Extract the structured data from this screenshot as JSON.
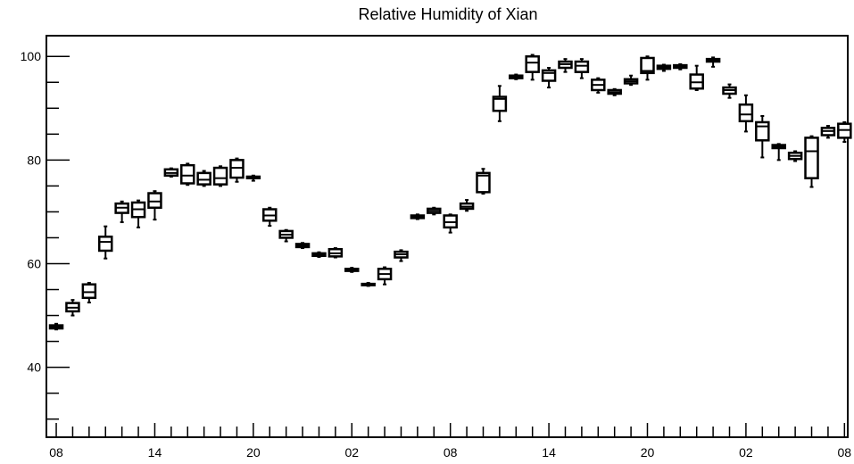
{
  "chart_data": {
    "type": "box",
    "title": "Relative Humidity of Xian",
    "xlabel": "",
    "ylabel": "",
    "ylim": [
      26.5,
      104
    ],
    "y_ticks": [
      40,
      60,
      80,
      100
    ],
    "x_tick_labels": [
      "08",
      "14",
      "20",
      "02",
      "08",
      "14",
      "20",
      "02",
      "08"
    ],
    "x_tick_hours": [
      0,
      6,
      12,
      18,
      24,
      30,
      36,
      42,
      48
    ],
    "xlim": [
      -0.6,
      48.2
    ],
    "grid": false,
    "boxes": [
      {
        "hour": 0,
        "q1": 47.5,
        "median": 47.8,
        "q3": 48.1,
        "min": 47.3,
        "max": 48.4
      },
      {
        "hour": 1,
        "q1": 50.8,
        "median": 51.5,
        "q3": 52.4,
        "min": 50.0,
        "max": 53.0
      },
      {
        "hour": 2,
        "q1": 53.4,
        "median": 54.5,
        "q3": 56.0,
        "min": 52.5,
        "max": 56.3
      },
      {
        "hour": 3,
        "q1": 62.5,
        "median": 64.2,
        "q3": 65.2,
        "min": 61.0,
        "max": 67.2
      },
      {
        "hour": 4,
        "q1": 69.8,
        "median": 70.8,
        "q3": 71.6,
        "min": 68.0,
        "max": 72.0
      },
      {
        "hour": 5,
        "q1": 69.0,
        "median": 70.5,
        "q3": 71.8,
        "min": 67.0,
        "max": 72.2
      },
      {
        "hour": 6,
        "q1": 70.8,
        "median": 72.0,
        "q3": 73.6,
        "min": 68.5,
        "max": 74.0
      },
      {
        "hour": 7,
        "q1": 77.0,
        "median": 77.5,
        "q3": 78.2,
        "min": 76.8,
        "max": 78.4
      },
      {
        "hour": 8,
        "q1": 75.5,
        "median": 77.0,
        "q3": 79.0,
        "min": 75.2,
        "max": 79.3
      },
      {
        "hour": 9,
        "q1": 75.3,
        "median": 76.2,
        "q3": 77.5,
        "min": 75.0,
        "max": 77.9
      },
      {
        "hour": 10,
        "q1": 75.3,
        "median": 76.5,
        "q3": 78.5,
        "min": 75.0,
        "max": 78.8
      },
      {
        "hour": 11,
        "q1": 76.6,
        "median": 78.5,
        "q3": 80.0,
        "min": 75.8,
        "max": 80.3
      },
      {
        "hour": 12,
        "q1": 76.5,
        "median": 76.6,
        "q3": 76.8,
        "min": 76.0,
        "max": 77.0
      },
      {
        "hour": 13,
        "q1": 68.3,
        "median": 69.3,
        "q3": 70.5,
        "min": 67.3,
        "max": 70.8
      },
      {
        "hour": 14,
        "q1": 65.0,
        "median": 65.6,
        "q3": 66.3,
        "min": 64.3,
        "max": 66.5
      },
      {
        "hour": 15,
        "q1": 63.2,
        "median": 63.5,
        "q3": 63.8,
        "min": 63.0,
        "max": 64.0
      },
      {
        "hour": 16,
        "q1": 61.5,
        "median": 61.7,
        "q3": 62.0,
        "min": 61.3,
        "max": 62.2
      },
      {
        "hour": 17,
        "q1": 61.4,
        "median": 62.0,
        "q3": 62.8,
        "min": 61.2,
        "max": 63.0
      },
      {
        "hour": 18,
        "q1": 58.6,
        "median": 58.8,
        "q3": 59.0,
        "min": 58.4,
        "max": 59.2
      },
      {
        "hour": 19,
        "q1": 55.9,
        "median": 56.0,
        "q3": 56.1,
        "min": 55.7,
        "max": 56.3
      },
      {
        "hour": 20,
        "q1": 57.0,
        "median": 58.0,
        "q3": 59.0,
        "min": 56.0,
        "max": 59.3
      },
      {
        "hour": 21,
        "q1": 61.2,
        "median": 61.8,
        "q3": 62.3,
        "min": 60.5,
        "max": 62.6
      },
      {
        "hour": 22,
        "q1": 68.8,
        "median": 69.0,
        "q3": 69.3,
        "min": 68.6,
        "max": 69.5
      },
      {
        "hour": 23,
        "q1": 69.8,
        "median": 70.2,
        "q3": 70.6,
        "min": 69.5,
        "max": 70.8
      },
      {
        "hour": 24,
        "q1": 67.0,
        "median": 68.0,
        "q3": 69.3,
        "min": 66.0,
        "max": 69.5
      },
      {
        "hour": 25,
        "q1": 70.6,
        "median": 71.0,
        "q3": 71.6,
        "min": 70.2,
        "max": 72.3
      },
      {
        "hour": 26,
        "q1": 73.8,
        "median": 77.0,
        "q3": 77.5,
        "min": 73.5,
        "max": 78.3
      },
      {
        "hour": 27,
        "q1": 89.5,
        "median": 91.8,
        "q3": 92.2,
        "min": 87.5,
        "max": 94.3
      },
      {
        "hour": 28,
        "q1": 95.8,
        "median": 96.0,
        "q3": 96.3,
        "min": 95.6,
        "max": 96.5
      },
      {
        "hour": 29,
        "q1": 97.0,
        "median": 98.8,
        "q3": 100.0,
        "min": 95.5,
        "max": 100.3
      },
      {
        "hour": 30,
        "q1": 95.3,
        "median": 96.8,
        "q3": 97.3,
        "min": 94.0,
        "max": 97.8
      },
      {
        "hour": 31,
        "q1": 97.8,
        "median": 98.5,
        "q3": 99.0,
        "min": 97.0,
        "max": 99.5
      },
      {
        "hour": 32,
        "q1": 97.0,
        "median": 98.2,
        "q3": 99.0,
        "min": 95.8,
        "max": 99.5
      },
      {
        "hour": 33,
        "q1": 93.5,
        "median": 94.5,
        "q3": 95.5,
        "min": 93.0,
        "max": 95.8
      },
      {
        "hour": 34,
        "q1": 92.8,
        "median": 93.1,
        "q3": 93.5,
        "min": 92.5,
        "max": 93.7
      },
      {
        "hour": 35,
        "q1": 94.8,
        "median": 95.2,
        "q3": 95.6,
        "min": 94.5,
        "max": 96.3
      },
      {
        "hour": 36,
        "q1": 96.8,
        "median": 97.2,
        "q3": 99.7,
        "min": 95.5,
        "max": 100.0
      },
      {
        "hour": 37,
        "q1": 97.6,
        "median": 97.9,
        "q3": 98.2,
        "min": 97.2,
        "max": 98.4
      },
      {
        "hour": 38,
        "q1": 97.8,
        "median": 98.0,
        "q3": 98.3,
        "min": 97.5,
        "max": 98.5
      },
      {
        "hour": 39,
        "q1": 93.8,
        "median": 95.0,
        "q3": 96.5,
        "min": 93.5,
        "max": 98.2
      },
      {
        "hour": 40,
        "q1": 99.0,
        "median": 99.2,
        "q3": 99.5,
        "min": 98.0,
        "max": 99.8
      },
      {
        "hour": 41,
        "q1": 92.8,
        "median": 93.5,
        "q3": 94.0,
        "min": 92.0,
        "max": 94.6
      },
      {
        "hour": 42,
        "q1": 87.5,
        "median": 88.8,
        "q3": 90.7,
        "min": 85.5,
        "max": 92.5
      },
      {
        "hour": 43,
        "q1": 83.8,
        "median": 86.5,
        "q3": 87.3,
        "min": 80.5,
        "max": 88.5
      },
      {
        "hour": 44,
        "q1": 82.3,
        "median": 82.6,
        "q3": 82.9,
        "min": 80.0,
        "max": 83.1
      },
      {
        "hour": 45,
        "q1": 80.2,
        "median": 80.8,
        "q3": 81.4,
        "min": 79.8,
        "max": 81.7
      },
      {
        "hour": 46,
        "q1": 76.5,
        "median": 81.7,
        "q3": 84.3,
        "min": 74.8,
        "max": 84.6
      },
      {
        "hour": 47,
        "q1": 84.8,
        "median": 85.6,
        "q3": 86.2,
        "min": 84.3,
        "max": 86.6
      },
      {
        "hour": 48,
        "q1": 84.3,
        "median": 85.8,
        "q3": 87.0,
        "min": 83.5,
        "max": 87.3
      }
    ]
  }
}
